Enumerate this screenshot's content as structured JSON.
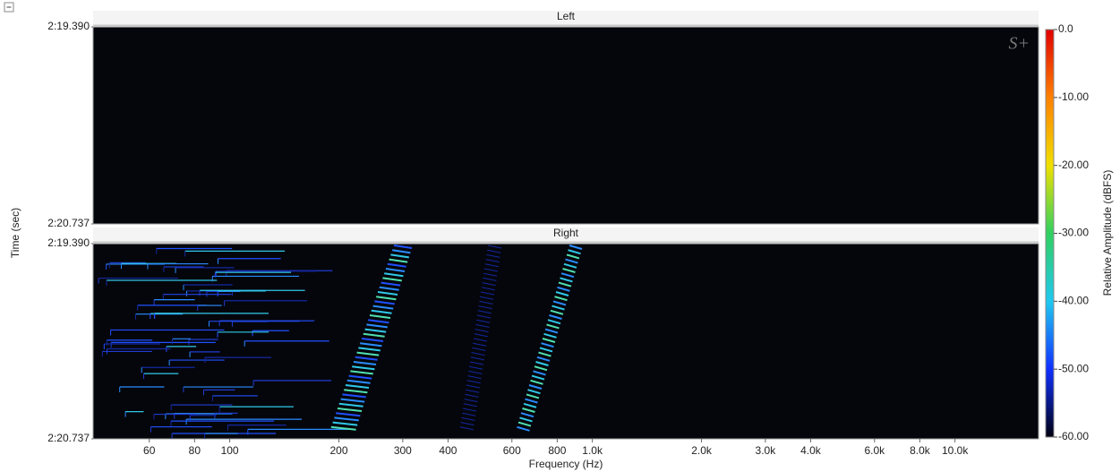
{
  "chart_data": {
    "type": "spectrogram",
    "panels": [
      {
        "title": "Left"
      },
      {
        "title": "Right"
      }
    ],
    "xlabel": "Frequency (Hz)",
    "ylabel": "Time (sec)",
    "x_scale": "log",
    "xlim": [
      42,
      17000
    ],
    "xticks": [
      60,
      80,
      100,
      200,
      300,
      400,
      600,
      800,
      {
        "value": 1000,
        "label": "1.0k"
      },
      {
        "value": 2000,
        "label": "2.0k"
      },
      {
        "value": 3000,
        "label": "3.0k"
      },
      {
        "value": 4000,
        "label": "4.0k"
      },
      {
        "value": 6000,
        "label": "6.0k"
      },
      {
        "value": 8000,
        "label": "8.0k"
      },
      {
        "value": 10000,
        "label": "10.0k"
      }
    ],
    "ylim": [
      139.39,
      140.737
    ],
    "yticks": [
      {
        "value": 139.39,
        "label": "2:19.390"
      },
      {
        "value": 140.737,
        "label": "2:20.737"
      }
    ],
    "colorbar": {
      "label": "Relative Amplitude (dBFS)",
      "lim": [
        -60,
        0
      ],
      "ticks": [
        {
          "value": 0,
          "label": "0.0"
        },
        {
          "value": -10,
          "label": "-10.00"
        },
        {
          "value": -20,
          "label": "-20.00"
        },
        {
          "value": -30,
          "label": "-30.00"
        },
        {
          "value": -40,
          "label": "-40.00"
        },
        {
          "value": -50,
          "label": "-50.00"
        },
        {
          "value": -60,
          "label": "-60.00"
        }
      ],
      "colormap": [
        "#000010",
        "#1030ff",
        "#20c8f0",
        "#30d060",
        "#f0e000",
        "#ff8000",
        "#e00000"
      ]
    },
    "watermark": "S+"
  }
}
